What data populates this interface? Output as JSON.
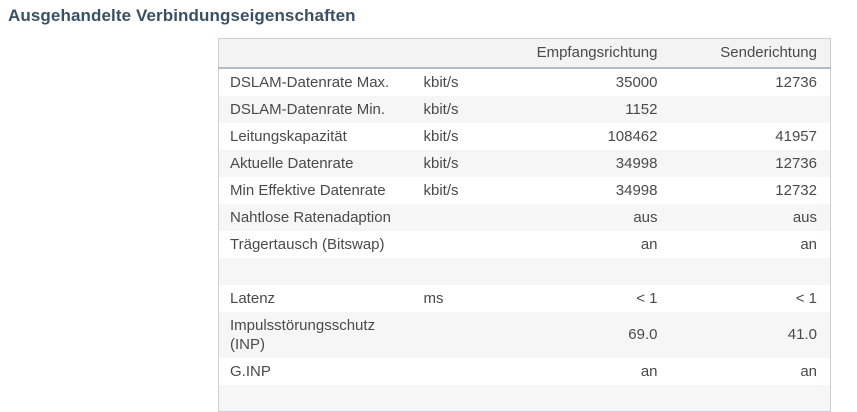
{
  "page": {
    "title": "Ausgehandelte Verbindungseigenschaften"
  },
  "colors": {
    "title_text": "#3a5064",
    "body_text": "#4a4a4a",
    "header_bg": "#f3f3f3",
    "row_alt_bg": "#f6f6f6",
    "table_border": "#c9d2d2",
    "header_underline": "#b0bdc4",
    "page_bg": "#ffffff"
  },
  "table": {
    "header": {
      "label": "",
      "unit": "",
      "rx": "Empfangsrichtung",
      "tx": "Senderichtung"
    },
    "rows": [
      {
        "label": "DSLAM-Datenrate Max.",
        "unit": "kbit/s",
        "rx": "35000",
        "tx": "12736"
      },
      {
        "label": "DSLAM-Datenrate Min.",
        "unit": "kbit/s",
        "rx": "1152",
        "tx": ""
      },
      {
        "label": "Leitungskapazität",
        "unit": "kbit/s",
        "rx": "108462",
        "tx": "41957"
      },
      {
        "label": "Aktuelle Datenrate",
        "unit": "kbit/s",
        "rx": "34998",
        "tx": "12736"
      },
      {
        "label": "Min Effektive Datenrate",
        "unit": "kbit/s",
        "rx": "34998",
        "tx": "12732"
      },
      {
        "label": "Nahtlose Ratenadaption",
        "unit": "",
        "rx": "aus",
        "tx": "aus"
      },
      {
        "label": "Trägertausch (Bitswap)",
        "unit": "",
        "rx": "an",
        "tx": "an"
      },
      {
        "label": "",
        "unit": "",
        "rx": "",
        "tx": ""
      },
      {
        "label": "Latenz",
        "unit": "ms",
        "rx": "< 1",
        "tx": "< 1"
      },
      {
        "label": "Impulsstörungsschutz (INP)",
        "unit": "",
        "rx": "69.0",
        "tx": "41.0"
      },
      {
        "label": "G.INP",
        "unit": "",
        "rx": "an",
        "tx": "an"
      },
      {
        "label": "",
        "unit": "",
        "rx": "",
        "tx": ""
      }
    ]
  }
}
